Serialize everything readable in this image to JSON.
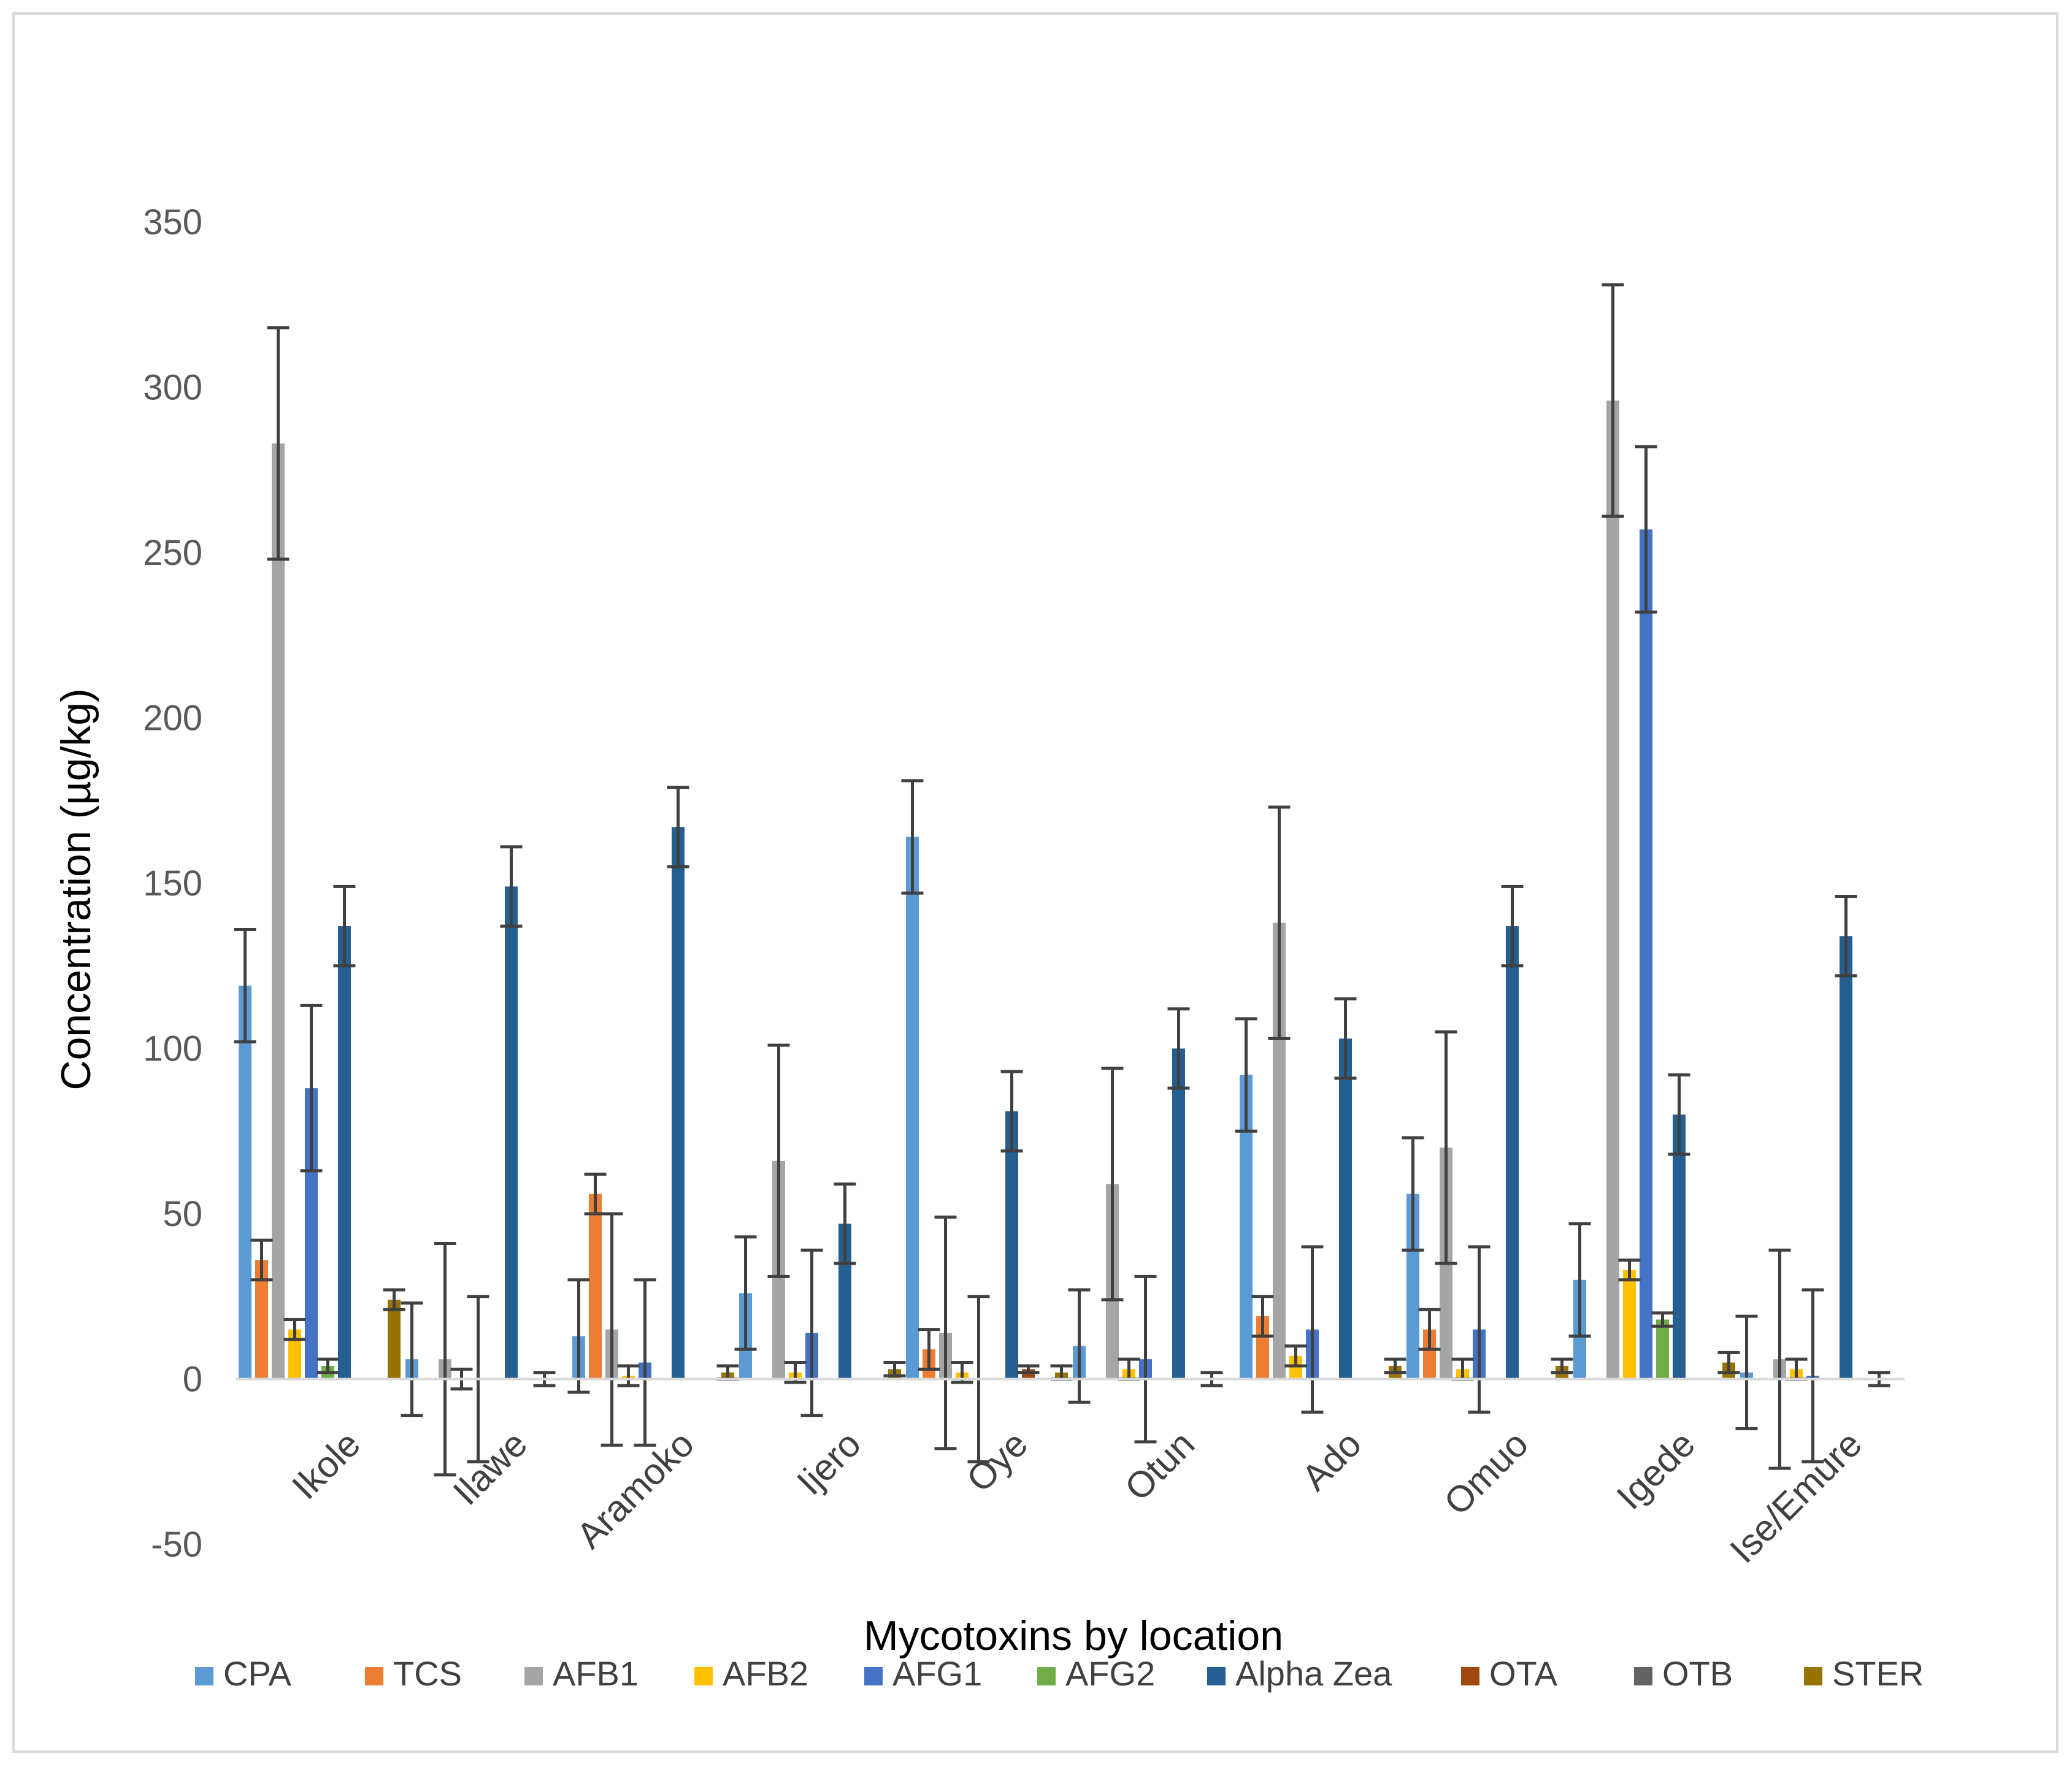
{
  "chart_data": {
    "type": "bar",
    "title": "",
    "xlabel": "Mycotoxins by location",
    "ylabel": "Concentration  (µg/kg)",
    "ylim": [
      -50,
      350
    ],
    "yticks": [
      -50,
      0,
      50,
      100,
      150,
      200,
      250,
      300,
      350
    ],
    "grid": false,
    "legend_position": "bottom",
    "categories": [
      "Ikole",
      "Ilawe",
      "Aramoko",
      "Ijero",
      "Oye",
      "Otun",
      "Ado",
      "Omuo",
      "Igede",
      "Ise/Emure"
    ],
    "series": [
      {
        "name": "CPA",
        "color": "#5b9bd5",
        "values": [
          119,
          6,
          13,
          26,
          164,
          10,
          92,
          56,
          30,
          2
        ],
        "errors": [
          17,
          17,
          17,
          17,
          17,
          17,
          17,
          17,
          17,
          17
        ]
      },
      {
        "name": "TCS",
        "color": "#ed7d31",
        "values": [
          36,
          0,
          56,
          0,
          9,
          0,
          19,
          15,
          0,
          0
        ],
        "errors": [
          6,
          0,
          6,
          0,
          6,
          0,
          6,
          6,
          0,
          0
        ]
      },
      {
        "name": "AFB1",
        "color": "#a5a5a5",
        "values": [
          283,
          6,
          15,
          66,
          14,
          59,
          138,
          70,
          296,
          6
        ],
        "errors": [
          35,
          35,
          35,
          35,
          35,
          35,
          35,
          35,
          35,
          33
        ]
      },
      {
        "name": "AFB2",
        "color": "#ffc000",
        "values": [
          15,
          0,
          1,
          2,
          2,
          3,
          7,
          3,
          33,
          3
        ],
        "errors": [
          3,
          3,
          3,
          3,
          3,
          3,
          3,
          3,
          3,
          3
        ]
      },
      {
        "name": "AFG1",
        "color": "#4472c4",
        "values": [
          88,
          0,
          5,
          14,
          0,
          6,
          15,
          15,
          257,
          1
        ],
        "errors": [
          25,
          25,
          25,
          25,
          25,
          25,
          25,
          25,
          25,
          26
        ]
      },
      {
        "name": "AFG2",
        "color": "#70ad47",
        "values": [
          4,
          0,
          0,
          0,
          0,
          0,
          0,
          0,
          18,
          0
        ],
        "errors": [
          2,
          0,
          0,
          0,
          0,
          0,
          0,
          0,
          2,
          0
        ]
      },
      {
        "name": "Alpha Zea",
        "color": "#255e91",
        "values": [
          137,
          149,
          167,
          47,
          81,
          100,
          103,
          137,
          80,
          134
        ],
        "errors": [
          12,
          12,
          12,
          12,
          12,
          12,
          12,
          12,
          12,
          12
        ]
      },
      {
        "name": "OTA",
        "color": "#9e480e",
        "values": [
          0,
          0,
          0,
          0,
          3,
          0,
          0,
          0,
          0,
          0
        ],
        "errors": [
          0,
          0,
          0,
          0,
          1,
          0,
          0,
          0,
          0,
          0
        ]
      },
      {
        "name": "OTB",
        "color": "#636363",
        "values": [
          0,
          0,
          0,
          0,
          0,
          0,
          0,
          0,
          0,
          0
        ],
        "errors": [
          0,
          2,
          0,
          0,
          0,
          2,
          0,
          0,
          0,
          2
        ]
      },
      {
        "name": "STER",
        "color": "#997300",
        "values": [
          24,
          0,
          2,
          3,
          2,
          0,
          4,
          4,
          5,
          0
        ],
        "errors": [
          3,
          0,
          2,
          2,
          2,
          0,
          2,
          2,
          3,
          0
        ]
      }
    ]
  }
}
